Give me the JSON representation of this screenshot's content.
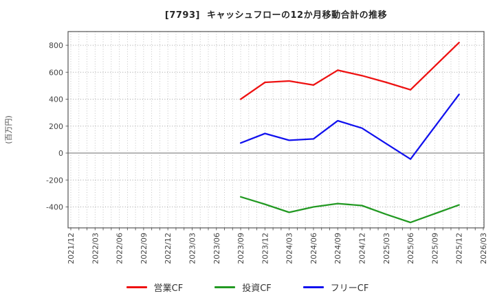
{
  "title": "[7793]  キャッシュフローの12か月移動合計の推移",
  "y_axis_label": "(百万円)",
  "chart_data": {
    "type": "line",
    "title": "[7793]  キャッシュフローの12か月移動合計の推移",
    "ylabel": "(百万円)",
    "xlabel": "",
    "x_tick_labels": [
      "2021/12",
      "2022/03",
      "2022/06",
      "2022/09",
      "2022/12",
      "2023/03",
      "2023/06",
      "2023/09",
      "2023/12",
      "2024/03",
      "2024/06",
      "2024/09",
      "2024/12",
      "2025/03",
      "2025/06",
      "2025/09",
      "2025/12",
      "2026/03"
    ],
    "y_ticks": [
      800,
      600,
      400,
      200,
      0,
      -200,
      -400
    ],
    "ylim": [
      -560,
      900
    ],
    "grid": "dotted gridlines, monthly vertical and 200-step horizontal, solid zero line",
    "legend_position": "bottom-center",
    "quarter_step_months": 3,
    "series": [
      {
        "name": "営業CF",
        "color": "#ee1111",
        "start": "2023/09",
        "x": [
          "2023/09",
          "2023/12",
          "2024/03",
          "2024/06",
          "2024/09",
          "2024/12",
          "2025/03",
          "2025/06",
          "2025/09",
          "2025/12"
        ],
        "values": [
          400,
          525,
          535,
          505,
          615,
          575,
          525,
          470,
          645,
          820
        ]
      },
      {
        "name": "投資CF",
        "color": "#229922",
        "start": "2023/09",
        "x": [
          "2023/09",
          "2023/12",
          "2024/03",
          "2024/06",
          "2024/09",
          "2024/12",
          "2025/03",
          "2025/06",
          "2025/09",
          "2025/12"
        ],
        "values": [
          -325,
          -380,
          -440,
          -400,
          -375,
          -390,
          -455,
          -515,
          -450,
          -385
        ]
      },
      {
        "name": "フリーCF",
        "color": "#1111ee",
        "start": "2023/09",
        "x": [
          "2023/09",
          "2023/12",
          "2024/03",
          "2024/06",
          "2024/09",
          "2024/12",
          "2025/03",
          "2025/06",
          "2025/09",
          "2025/12"
        ],
        "values": [
          75,
          145,
          95,
          105,
          240,
          185,
          70,
          -45,
          195,
          435
        ]
      }
    ]
  }
}
